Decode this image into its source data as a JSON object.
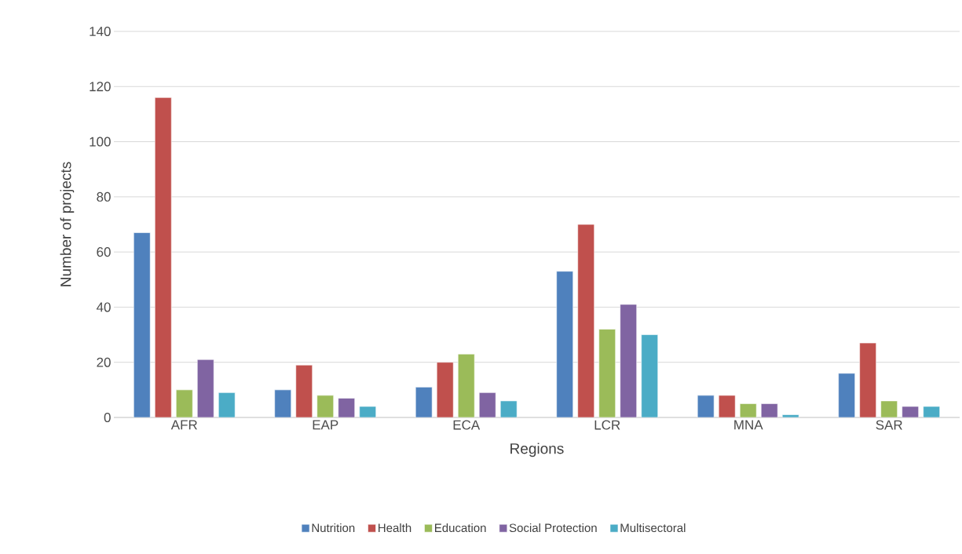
{
  "chart_data": {
    "type": "bar",
    "xlabel": "Regions",
    "ylabel": "Number of projects",
    "categories": [
      "AFR",
      "EAP",
      "ECA",
      "LCR",
      "MNA",
      "SAR"
    ],
    "series": [
      {
        "name": "Nutrition",
        "color": "#4f81bd",
        "values": [
          67,
          10,
          11,
          53,
          8,
          16
        ]
      },
      {
        "name": "Health",
        "color": "#c0504d",
        "values": [
          116,
          19,
          20,
          70,
          8,
          27
        ]
      },
      {
        "name": "Education",
        "color": "#9bbb59",
        "values": [
          10,
          8,
          23,
          32,
          5,
          6
        ]
      },
      {
        "name": "Social Protection",
        "color": "#8064a2",
        "values": [
          21,
          7,
          9,
          41,
          5,
          4
        ]
      },
      {
        "name": "Multisectoral",
        "color": "#4bacc6",
        "values": [
          9,
          4,
          6,
          30,
          1,
          4
        ]
      }
    ],
    "ylim": [
      0,
      140
    ],
    "yticks": [
      0,
      20,
      40,
      60,
      80,
      100,
      120,
      140
    ],
    "grid": "y",
    "legend": "bottom"
  }
}
